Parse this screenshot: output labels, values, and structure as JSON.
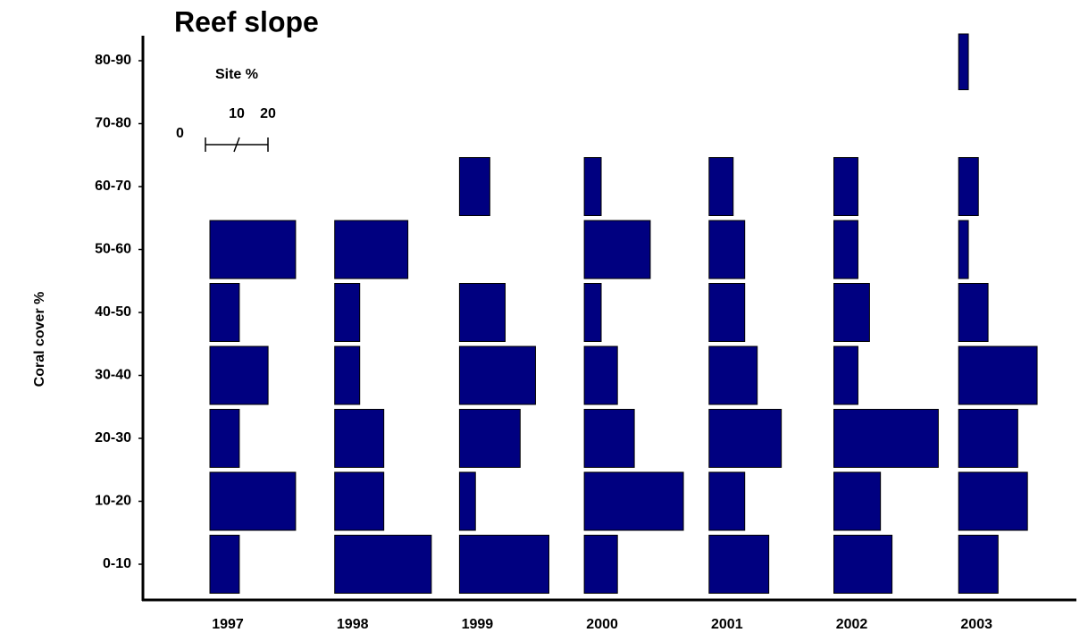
{
  "chart_data": {
    "type": "kite",
    "title": "Reef slope",
    "ylabel": "Coral cover %",
    "color": "#000080",
    "categories": [
      "0-10",
      "10-20",
      "20-30",
      "30-40",
      "40-50",
      "50-60",
      "60-70",
      "70-80",
      "80-90"
    ],
    "scale": {
      "label": "Site %",
      "ticks": [
        0,
        10,
        20
      ]
    },
    "series": [
      {
        "name": "1997",
        "values": [
          9.4,
          27.4,
          9.4,
          18.6,
          9.4,
          27.4,
          0,
          0,
          0
        ]
      },
      {
        "name": "1998",
        "values": [
          30.9,
          15.7,
          15.7,
          8,
          8,
          23.4,
          0,
          0,
          0
        ]
      },
      {
        "name": "1999",
        "values": [
          28.6,
          5.1,
          19.4,
          24.3,
          14.6,
          0,
          9.7,
          0,
          0
        ]
      },
      {
        "name": "2000",
        "values": [
          10.6,
          31.7,
          16,
          10.6,
          5.4,
          21.1,
          5.4,
          0,
          0
        ]
      },
      {
        "name": "2001",
        "values": [
          19.1,
          11.4,
          23.1,
          15.4,
          11.4,
          11.4,
          7.7,
          0,
          0
        ]
      },
      {
        "name": "2002",
        "values": [
          18.6,
          14.9,
          33.4,
          7.7,
          11.4,
          7.7,
          7.7,
          0,
          0
        ]
      },
      {
        "name": "2003",
        "values": [
          12.6,
          22,
          18.9,
          25.1,
          9.4,
          3.1,
          6.3,
          0,
          3.1
        ]
      }
    ]
  }
}
